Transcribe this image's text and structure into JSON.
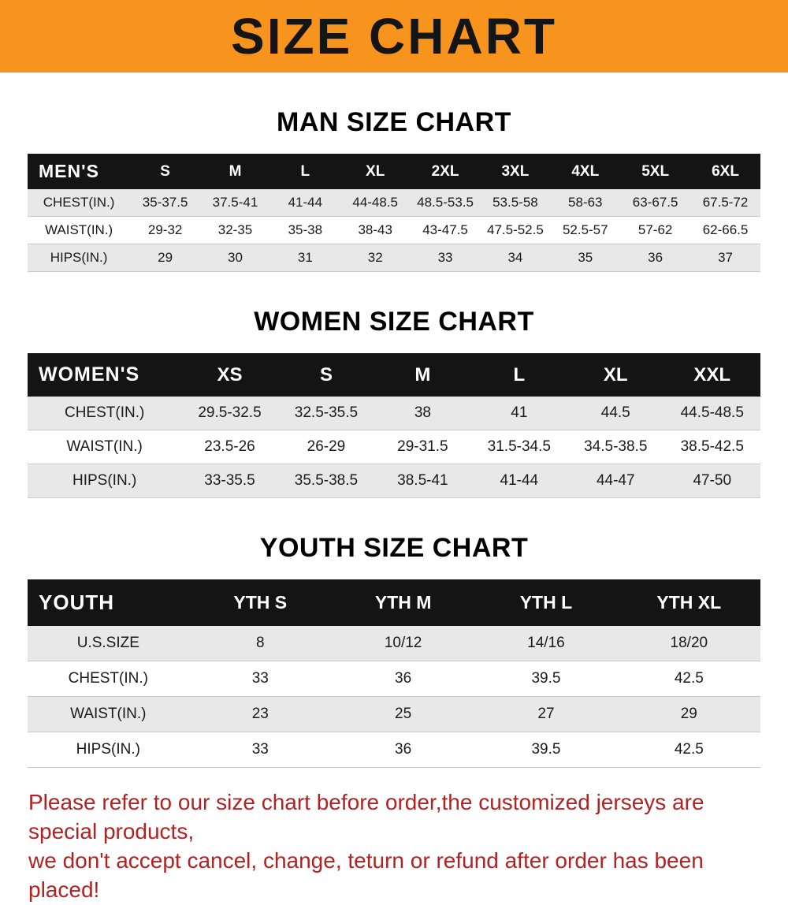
{
  "banner": {
    "title": "SIZE CHART",
    "bg_color": "#F7941E",
    "text_color": "#151515"
  },
  "sections": [
    {
      "heading": "MAN SIZE CHART",
      "table": {
        "header": [
          "MEN'S",
          "S",
          "M",
          "L",
          "XL",
          "2XL",
          "3XL",
          "4XL",
          "5XL",
          "6XL"
        ],
        "rows": [
          [
            "CHEST(IN.)",
            "35-37.5",
            "37.5-41",
            "41-44",
            "44-48.5",
            "48.5-53.5",
            "53.5-58",
            "58-63",
            "63-67.5",
            "67.5-72"
          ],
          [
            "WAIST(IN.)",
            "29-32",
            "32-35",
            "35-38",
            "38-43",
            "43-47.5",
            "47.5-52.5",
            "52.5-57",
            "57-62",
            "62-66.5"
          ],
          [
            "HIPS(IN.)",
            "29",
            "30",
            "31",
            "32",
            "33",
            "34",
            "35",
            "36",
            "37"
          ]
        ]
      }
    },
    {
      "heading": "WOMEN SIZE CHART",
      "table": {
        "header": [
          "WOMEN'S",
          "XS",
          "S",
          "M",
          "L",
          "XL",
          "XXL"
        ],
        "rows": [
          [
            "CHEST(IN.)",
            "29.5-32.5",
            "32.5-35.5",
            "38",
            "41",
            "44.5",
            "44.5-48.5"
          ],
          [
            "WAIST(IN.)",
            "23.5-26",
            "26-29",
            "29-31.5",
            "31.5-34.5",
            "34.5-38.5",
            "38.5-42.5"
          ],
          [
            "HIPS(IN.)",
            "33-35.5",
            "35.5-38.5",
            "38.5-41",
            "41-44",
            "44-47",
            "47-50"
          ]
        ]
      }
    },
    {
      "heading": "YOUTH SIZE CHART",
      "table": {
        "header": [
          "YOUTH",
          "YTH S",
          "YTH M",
          "YTH L",
          "YTH XL"
        ],
        "rows": [
          [
            "U.S.SIZE",
            "8",
            "10/12",
            "14/16",
            "18/20"
          ],
          [
            "CHEST(IN.)",
            "33",
            "36",
            "39.5",
            "42.5"
          ],
          [
            "WAIST(IN.)",
            "23",
            "25",
            "27",
            "29"
          ],
          [
            "HIPS(IN.)",
            "33",
            "36",
            "39.5",
            "42.5"
          ]
        ]
      }
    }
  ],
  "footer": {
    "line1": "Please refer to our size chart before order,the customized jerseys are special products,",
    "line2": "we don't accept cancel, change, teturn or refund after order has been placed!",
    "text_color": "#B22222"
  }
}
